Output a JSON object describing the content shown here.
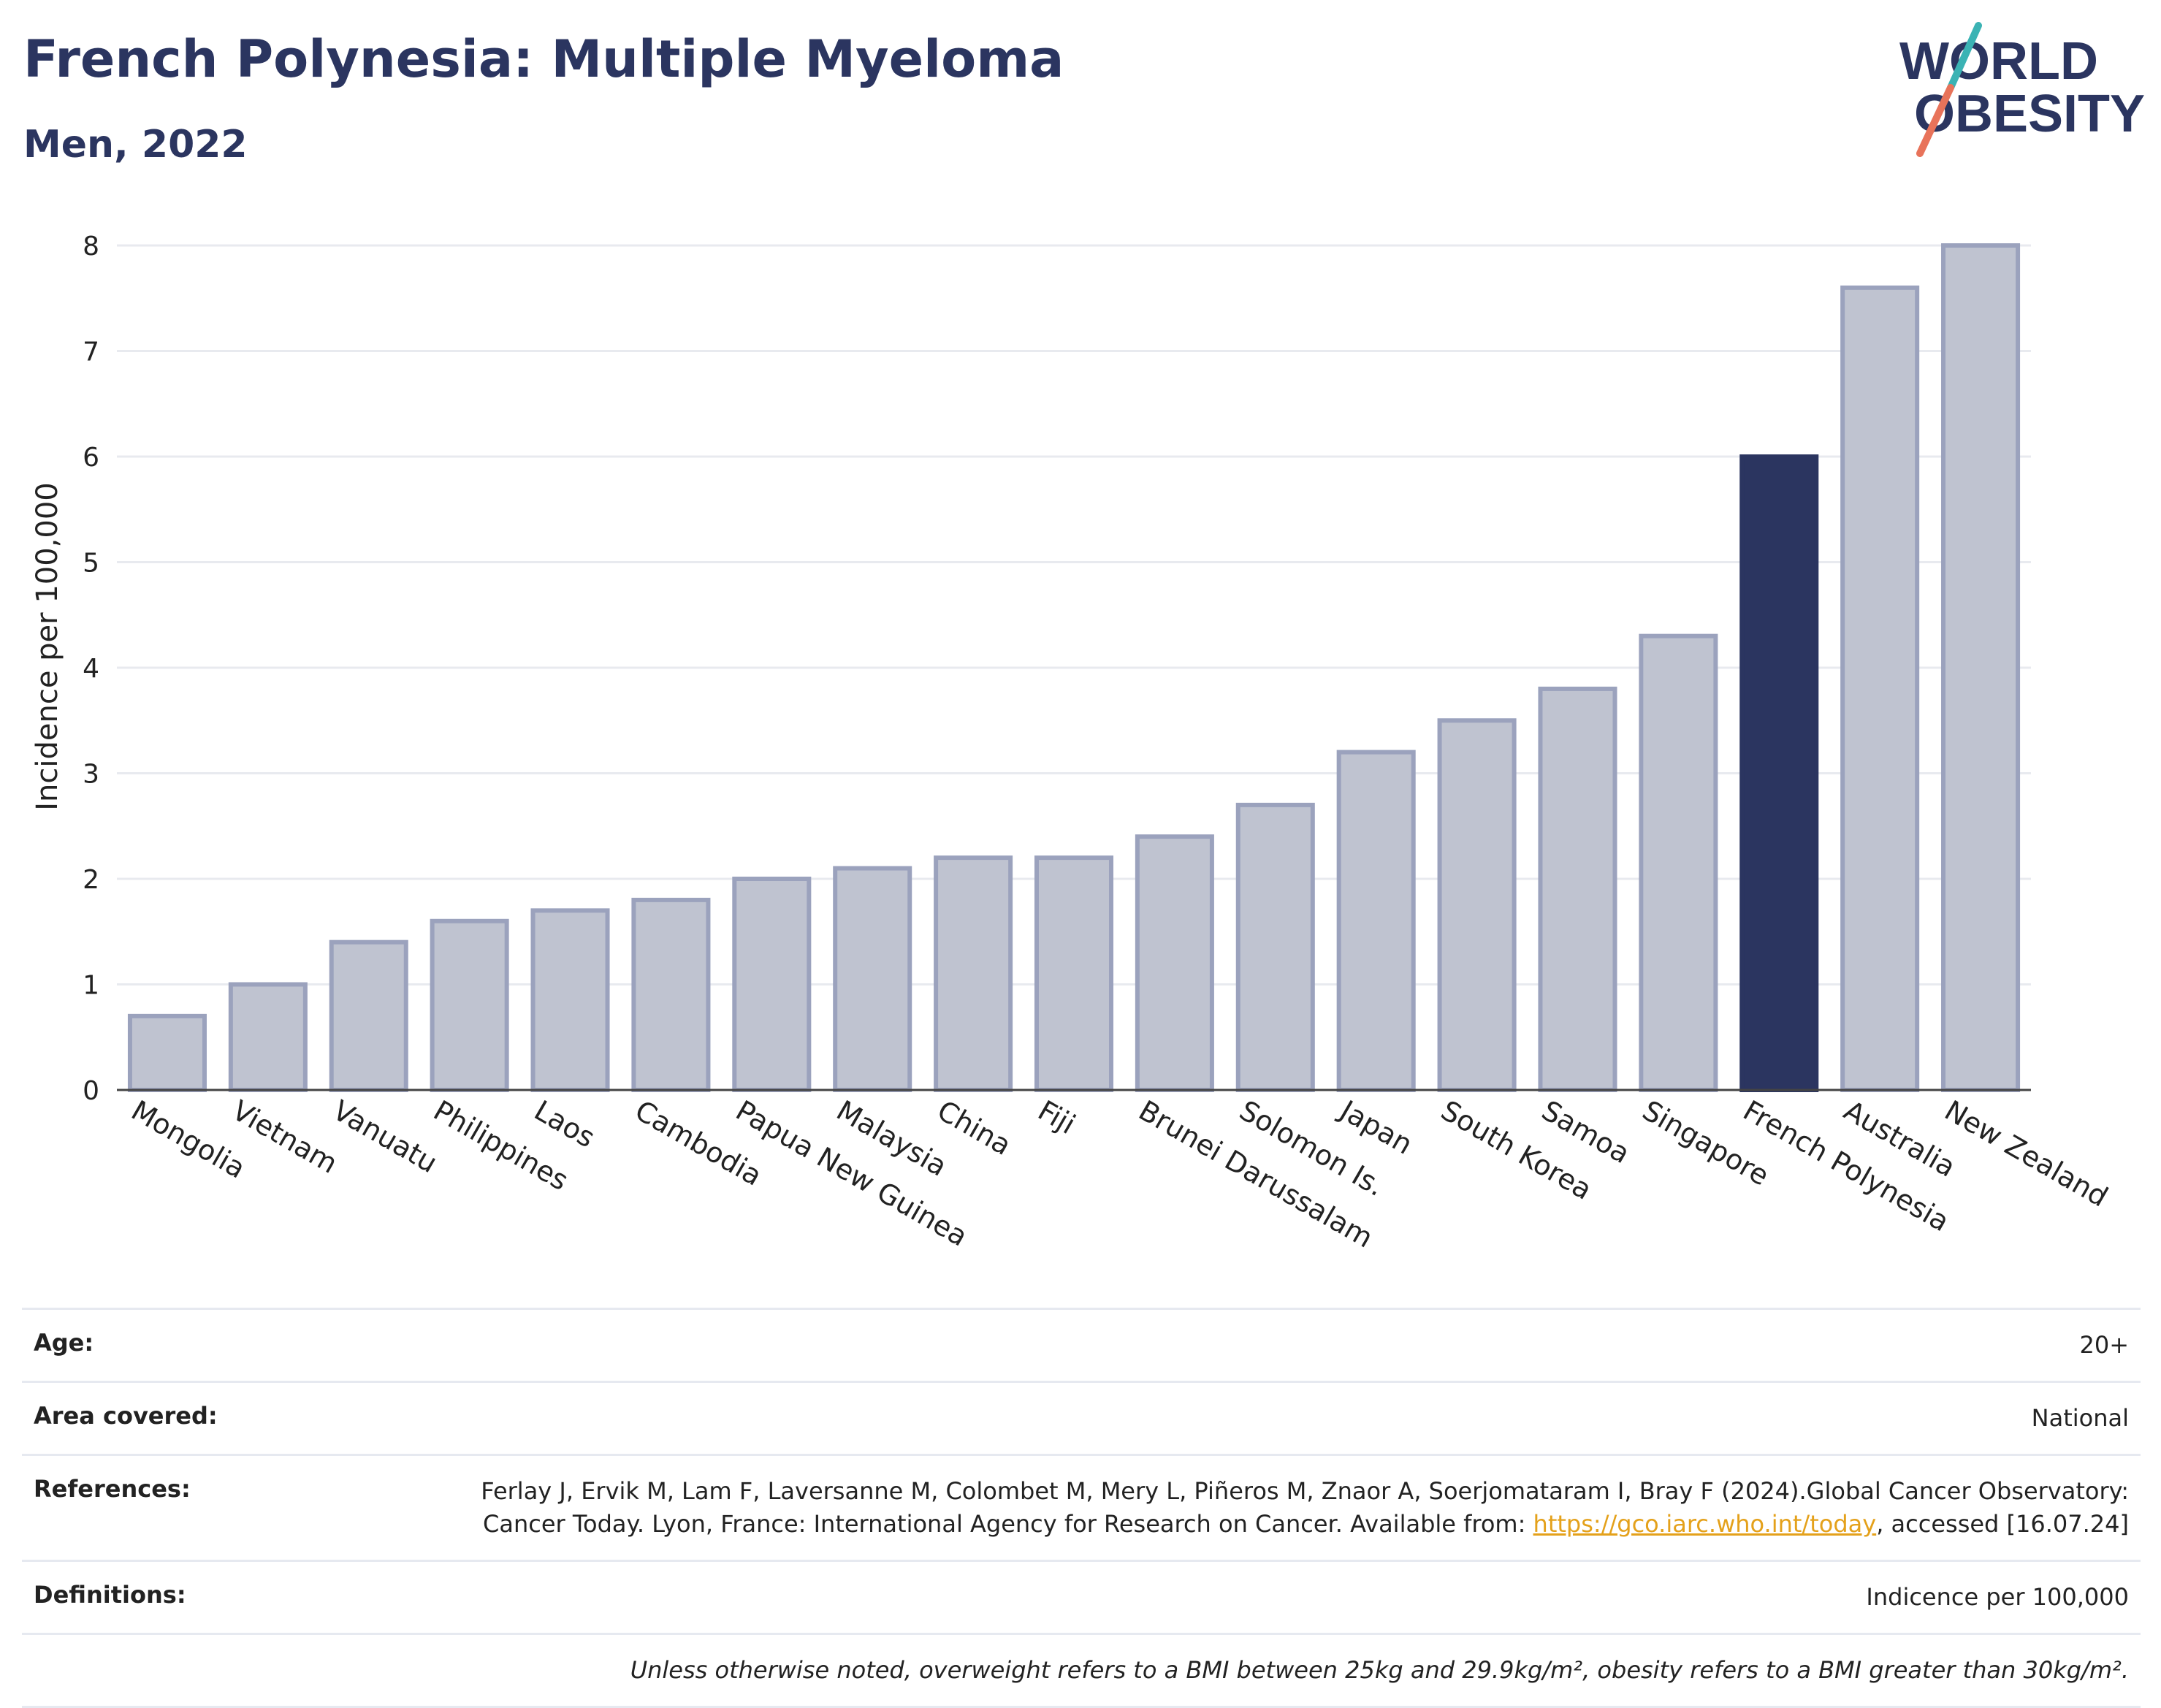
{
  "header": {
    "title": "French Polynesia: Multiple Myeloma",
    "subtitle": "Men, 2022"
  },
  "logo": {
    "line1": "WORLD",
    "line2": "OBESITY"
  },
  "colors": {
    "highlight": "#2b3560",
    "bar": "#bfc3d0",
    "bar_border": "#9ba2bd",
    "grid": "#e8eaef"
  },
  "chart_data": {
    "type": "bar",
    "categories": [
      "Mongolia",
      "Vietnam",
      "Vanuatu",
      "Philippines",
      "Laos",
      "Cambodia",
      "Papua New Guinea",
      "Malaysia",
      "China",
      "Fiji",
      "Brunei Darussalam",
      "Solomon Is.",
      "Japan",
      "South Korea",
      "Samoa",
      "Singapore",
      "French Polynesia",
      "Australia",
      "New Zealand"
    ],
    "values": [
      0.7,
      1.0,
      1.4,
      1.6,
      1.7,
      1.8,
      2.0,
      2.1,
      2.2,
      2.2,
      2.4,
      2.7,
      3.2,
      3.5,
      3.8,
      4.3,
      6.0,
      7.6,
      8.0
    ],
    "highlight": "French Polynesia",
    "ylabel": "Incidence per 100,000",
    "ylim": [
      0,
      8
    ],
    "yticks": [
      0,
      1,
      2,
      3,
      4,
      5,
      6,
      7,
      8
    ],
    "grid": true
  },
  "meta": {
    "age_label": "Age:",
    "age_value": "20+",
    "area_label": "Area covered:",
    "area_value": "National",
    "ref_label": "References:",
    "ref_text_1": "Ferlay J, Ervik M, Lam F, Laversanne M, Colombet M, Mery L, Piñeros M, Znaor A, Soerjomataram I, Bray F (2024).Global Cancer Observatory: Cancer Today. Lyon, France: International Agency for Research on Cancer. Available from: ",
    "ref_link": "https://gco.iarc.who.int/today",
    "ref_text_2": ", accessed [16.07.24]",
    "def_label": "Definitions:",
    "def_value": "Indicence per 100,000",
    "note": "Unless otherwise noted, overweight refers to a BMI between 25kg and 29.9kg/m², obesity refers to a BMI greater than 30kg/m²."
  }
}
